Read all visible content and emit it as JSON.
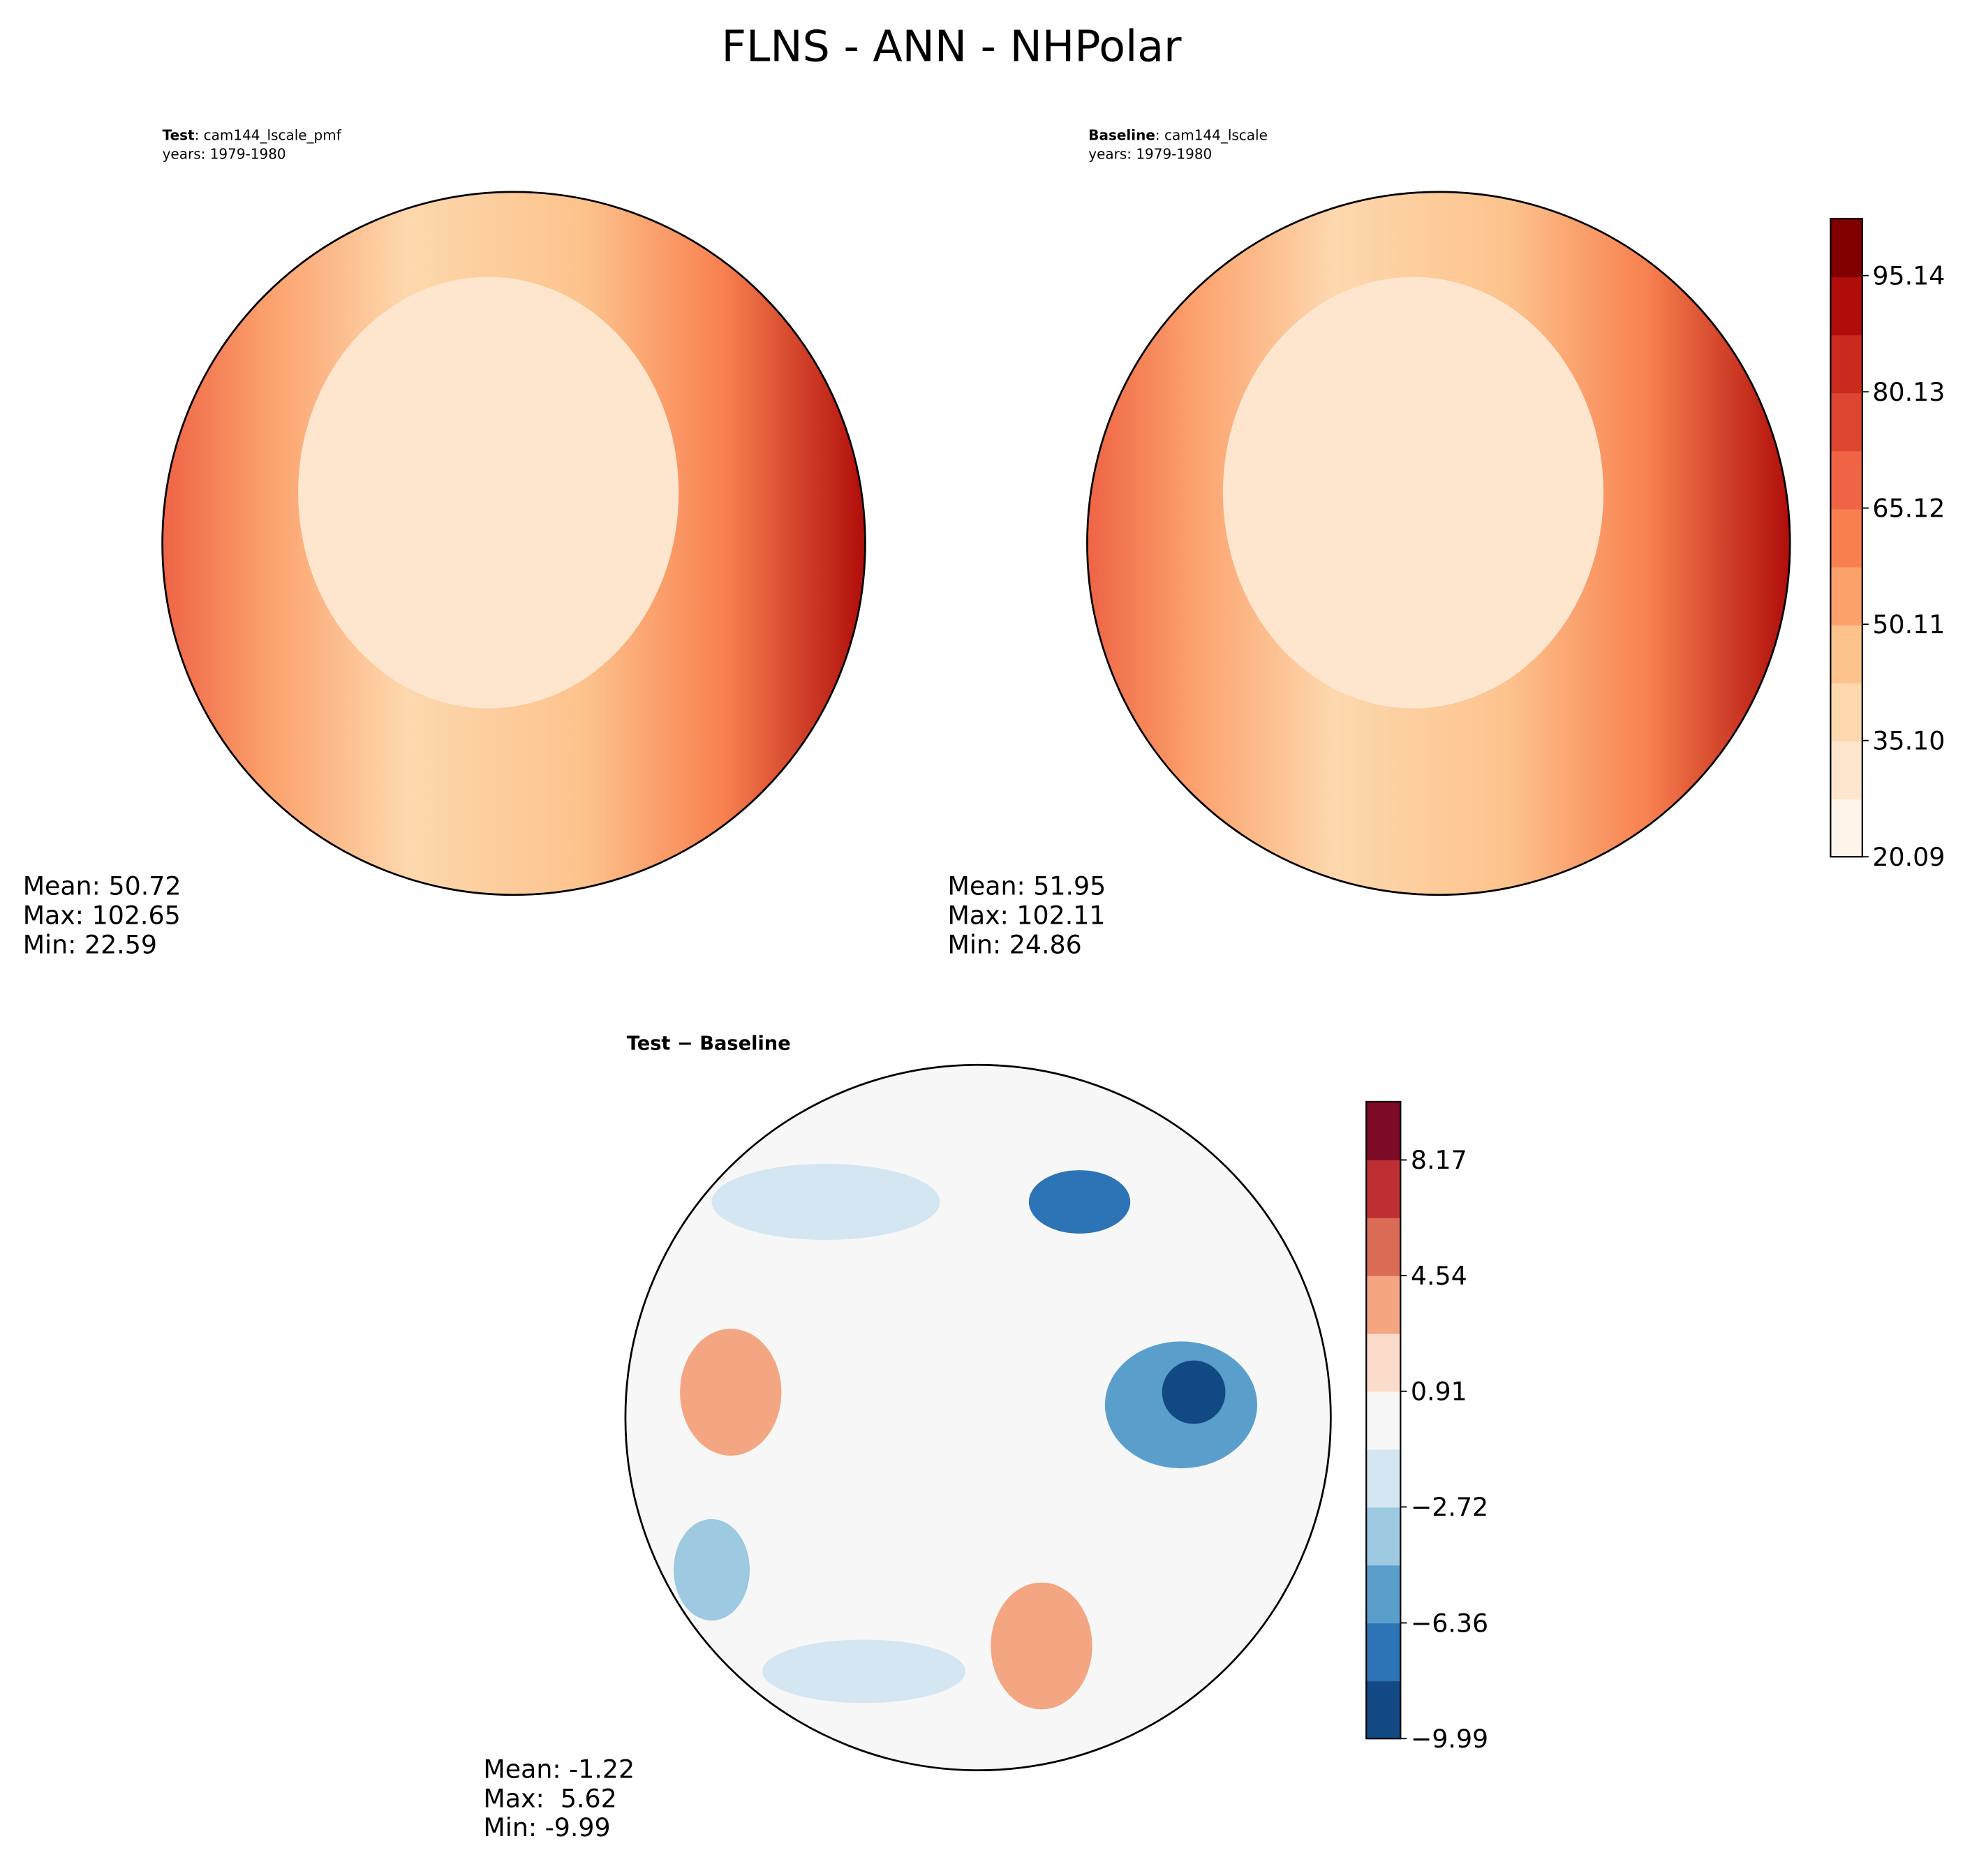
{
  "title": "FLNS - ANN - NHPolar",
  "panels": [
    {
      "label": "Test",
      "case": ": cam144_lscale_pmf",
      "years": "years: 1979-1980",
      "stats": [
        "Mean: 50.72",
        "Max: 102.65",
        "Min: 22.59"
      ]
    },
    {
      "label": "Baseline",
      "case": ": cam144_lscale",
      "years": "years: 1979-1980",
      "stats": [
        "Mean: 51.95",
        "Max: 102.11",
        "Min: 24.86"
      ]
    },
    {
      "title": "Test − Baseline",
      "stats": [
        "Mean: -1.22",
        "Max:  5.62",
        "Min: -9.99"
      ]
    }
  ],
  "colorbars": [
    {
      "ylim": [
        20.09,
        102.5
      ],
      "colors": [
        "#fff5eb",
        "#fee6ce",
        "#fdd8ae",
        "#fdc38d",
        "#fca16c",
        "#f8804f",
        "#ee6445",
        "#de4632",
        "#c92a1d",
        "#b00d0a",
        "#800000"
      ],
      "yticks": [
        20.09,
        {
          "value": 35.1,
          "label": "35.10"
        },
        50.11,
        65.12,
        80.13,
        95.14
      ]
    },
    {
      "ylim": [
        -9.99,
        10
      ],
      "colors": [
        "#124984",
        "#2c74b5",
        "#5a9fcc",
        "#9dc9e1",
        "#d4e6f1",
        "#f7f7f7",
        "#fbdcca",
        "#f4a683",
        "#da6b55",
        "#bd2f32",
        "#7d0b25"
      ],
      "yticks": [
        {
          "value": -9.99,
          "label": "−9.99"
        },
        {
          "value": -6.36,
          "label": "−6.36"
        },
        {
          "value": -2.72,
          "label": "−2.72"
        },
        0.91,
        4.54,
        8.17
      ]
    }
  ]
}
